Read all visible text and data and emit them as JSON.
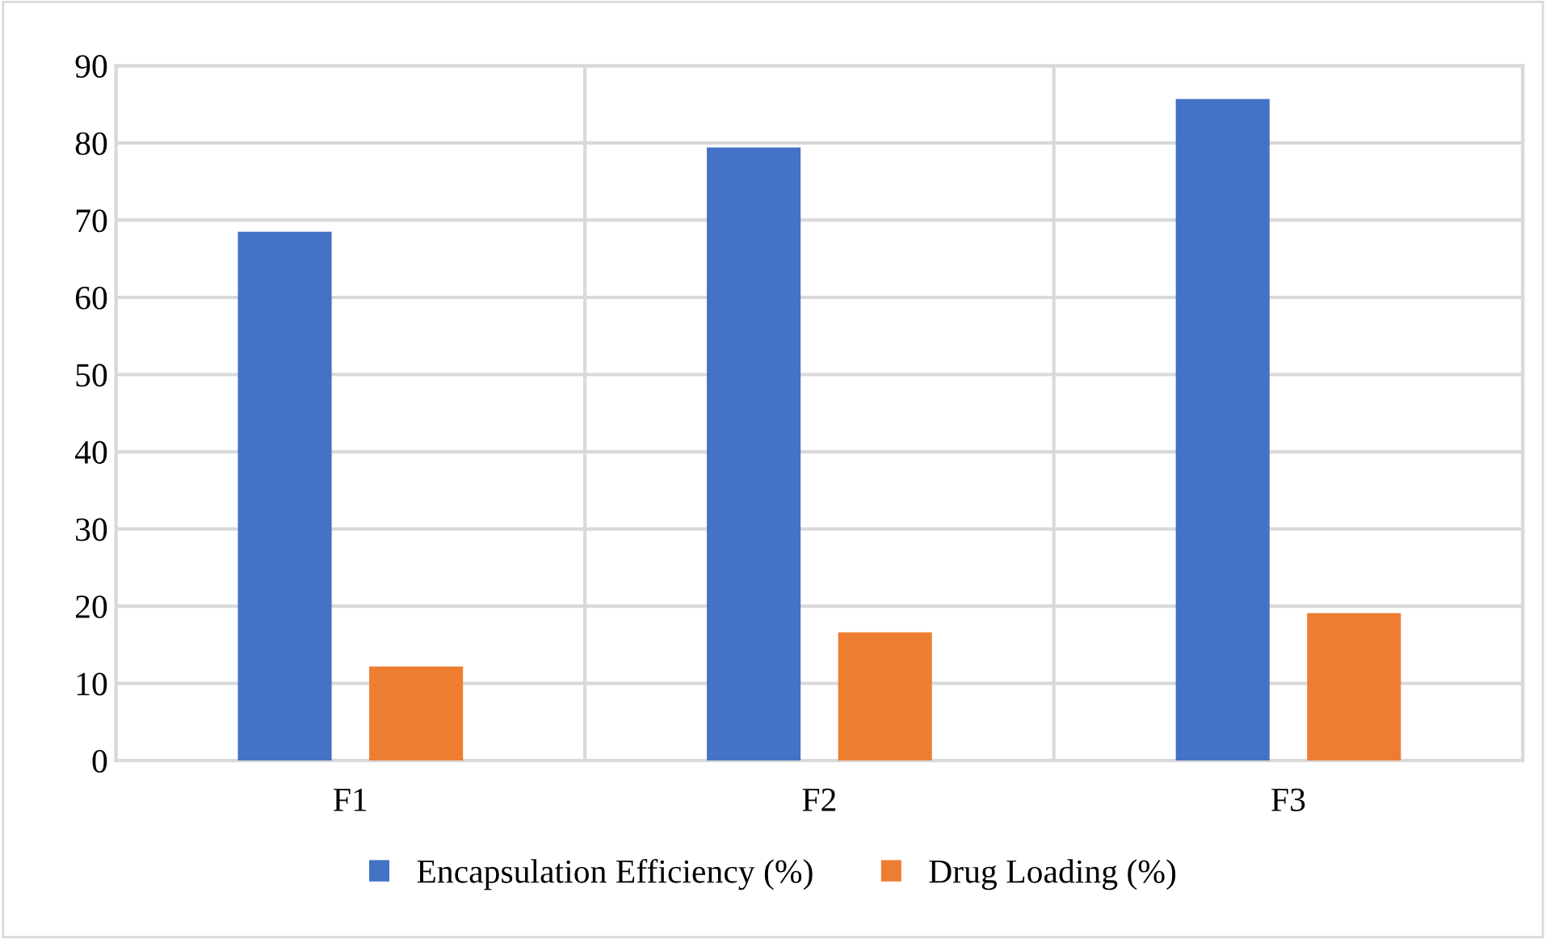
{
  "chart_data": {
    "type": "bar",
    "categories": [
      "F1",
      "F2",
      "F3"
    ],
    "series": [
      {
        "name": "Encapsulation Efficiency (%)",
        "color": "#4472c4",
        "values": [
          68.5,
          79.4,
          85.7
        ]
      },
      {
        "name": "Drug Loading (%)",
        "color": "#ed7d31",
        "values": [
          12.2,
          16.6,
          19.1
        ]
      }
    ],
    "ylim": [
      0,
      90
    ],
    "yticks": [
      0,
      10,
      20,
      30,
      40,
      50,
      60,
      70,
      80,
      90
    ],
    "grid": true,
    "legend": "bottom"
  }
}
